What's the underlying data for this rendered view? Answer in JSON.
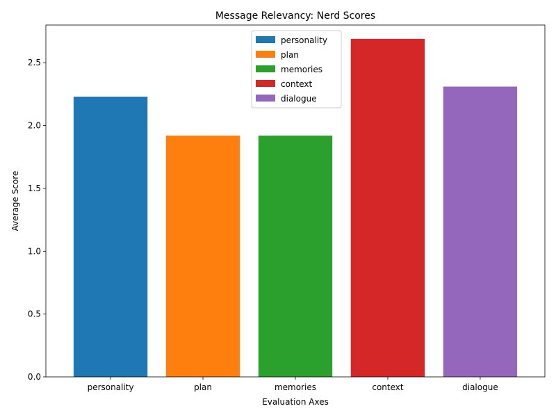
{
  "chart_data": {
    "type": "bar",
    "title": "Message Relevancy: Nerd Scores",
    "xlabel": "Evaluation Axes",
    "ylabel": "Average Score",
    "categories": [
      "personality",
      "plan",
      "memories",
      "context",
      "dialogue"
    ],
    "values": [
      2.23,
      1.92,
      1.92,
      2.69,
      2.31
    ],
    "colors": [
      "#1f77b4",
      "#ff7f0e",
      "#2ca02c",
      "#d62728",
      "#9467bd"
    ],
    "ylim": [
      0,
      2.8
    ],
    "yticks": [
      "0.0",
      "0.5",
      "1.0",
      "1.5",
      "2.0",
      "2.5"
    ],
    "grid": false,
    "legend": {
      "position": "top-center",
      "entries": [
        "personality",
        "plan",
        "memories",
        "context",
        "dialogue"
      ]
    }
  }
}
